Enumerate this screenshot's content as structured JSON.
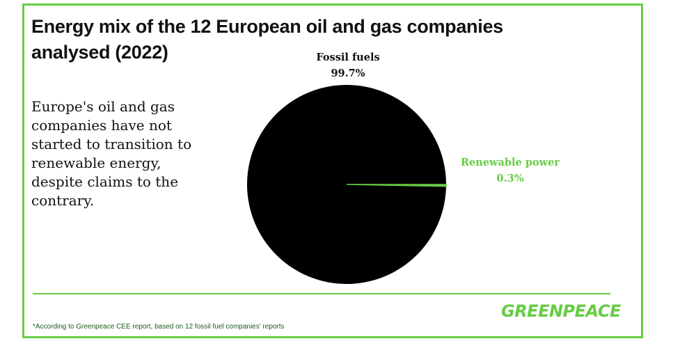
{
  "header": {
    "title": "Energy mix of the 12 European oil and gas companies analysed (2022)"
  },
  "description": " Europe's oil and gas companies have not started to transition to renewable energy, despite claims to the contrary.",
  "chart_data": {
    "type": "pie",
    "title": "",
    "slices": [
      {
        "name": "Fossil fuels",
        "value": 99.7,
        "label": "99.7%",
        "color": "#000000"
      },
      {
        "name": "Renewable power",
        "value": 0.3,
        "label": "0.3%",
        "color": "#66cc44"
      }
    ],
    "legend": "none"
  },
  "brand": {
    "logo_text": "GREENPEACE",
    "accent_color": "#66cc44"
  },
  "footer": {
    "footnote": "*According to Greenpeace CEE report, based on 12 fossil fuel companies' reports"
  }
}
